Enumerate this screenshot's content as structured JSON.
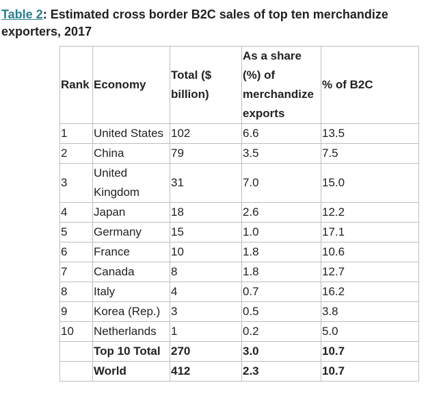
{
  "caption": {
    "link": "Table 2",
    "text": ": Estimated cross border B2C sales of top ten merchandize exporters, 2017"
  },
  "headers": {
    "rank": "Rank",
    "economy": "Economy",
    "total": "Total ($ billion)",
    "share": "As a share (%) of merchandize exports",
    "b2c": "% of B2C"
  },
  "rows": [
    {
      "rank": "1",
      "economy": "United States",
      "total": "102",
      "share": "6.6",
      "b2c": "13.5"
    },
    {
      "rank": "2",
      "economy": "China",
      "total": "79",
      "share": "3.5",
      "b2c": "7.5"
    },
    {
      "rank": "3",
      "economy": "United Kingdom",
      "total": "31",
      "share": "7.0",
      "b2c": "15.0"
    },
    {
      "rank": "4",
      "economy": "Japan",
      "total": "18",
      "share": "2.6",
      "b2c": "12.2"
    },
    {
      "rank": "5",
      "economy": "Germany",
      "total": "15",
      "share": "1.0",
      "b2c": "17.1"
    },
    {
      "rank": "6",
      "economy": "France",
      "total": "10",
      "share": "1.8",
      "b2c": "10.6"
    },
    {
      "rank": "7",
      "economy": "Canada",
      "total": "8",
      "share": "1.8",
      "b2c": "12.7"
    },
    {
      "rank": "8",
      "economy": "Italy",
      "total": "4",
      "share": "0.7",
      "b2c": "16.2"
    },
    {
      "rank": "9",
      "economy": "Korea (Rep.)",
      "total": "3",
      "share": "0.5",
      "b2c": "3.8"
    },
    {
      "rank": "10",
      "economy": "Netherlands",
      "total": "1",
      "share": "0.2",
      "b2c": "5.0"
    }
  ],
  "totals": [
    {
      "label": "Top 10 Total",
      "total": "270",
      "share": "3.0",
      "b2c": "10.7"
    },
    {
      "label": "World",
      "total": "412",
      "share": "2.3",
      "b2c": "10.7"
    }
  ]
}
